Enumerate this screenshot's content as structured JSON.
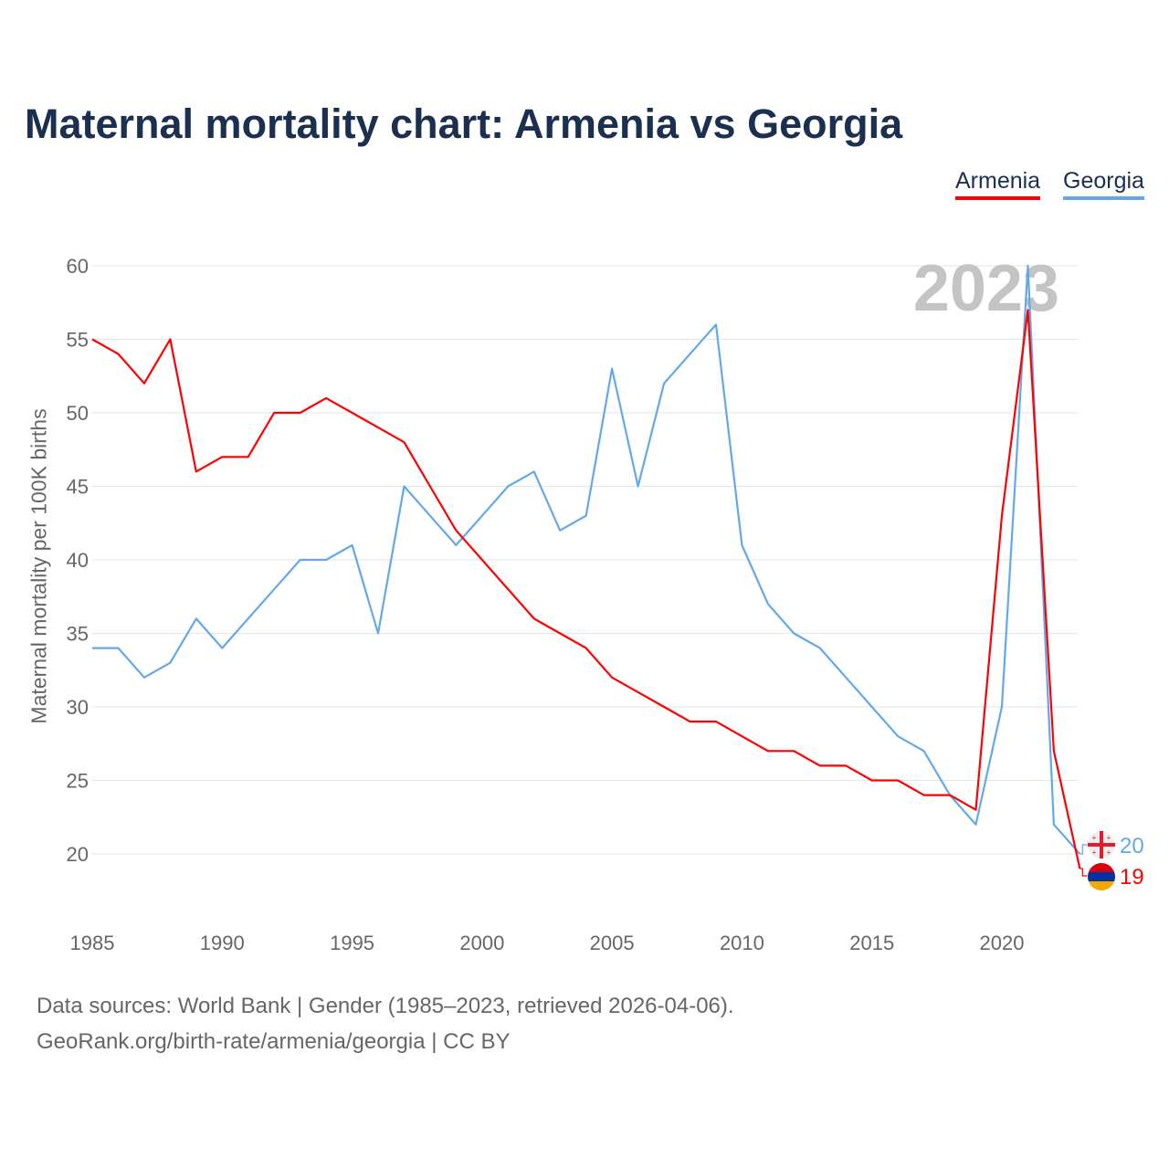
{
  "chart_data": {
    "type": "line",
    "title": "Maternal mortality chart: Armenia vs Georgia",
    "ylabel": "Maternal mortality per 100K births",
    "xlabel": "",
    "year_watermark": "2023",
    "ylim": [
      16,
      62
    ],
    "xlim": [
      1985,
      2023
    ],
    "grid": true,
    "legend_position": "top-right",
    "yticks": [
      20,
      25,
      30,
      35,
      40,
      45,
      50,
      55,
      60
    ],
    "xticks": [
      1985,
      1990,
      1995,
      2000,
      2005,
      2010,
      2015,
      2020
    ],
    "x": [
      1985,
      1986,
      1987,
      1988,
      1989,
      1990,
      1991,
      1992,
      1993,
      1994,
      1995,
      1996,
      1997,
      1998,
      1999,
      2000,
      2001,
      2002,
      2003,
      2004,
      2005,
      2006,
      2007,
      2008,
      2009,
      2010,
      2011,
      2012,
      2013,
      2014,
      2015,
      2016,
      2017,
      2018,
      2019,
      2020,
      2021,
      2022,
      2023
    ],
    "series": [
      {
        "name": "Armenia",
        "color": "#ff0000",
        "end_label": "19",
        "values": [
          55,
          54,
          52,
          55,
          46,
          47,
          47,
          50,
          50,
          51,
          50,
          49,
          48,
          45,
          42,
          40,
          38,
          36,
          35,
          34,
          32,
          31,
          30,
          29,
          29,
          28,
          27,
          27,
          26,
          26,
          25,
          25,
          24,
          24,
          23,
          43,
          57,
          27,
          19
        ]
      },
      {
        "name": "Georgia",
        "color": "#62a8ea",
        "end_label": "20",
        "values": [
          34,
          34,
          32,
          33,
          36,
          34,
          36,
          38,
          40,
          40,
          41,
          35,
          45,
          43,
          41,
          43,
          45,
          46,
          42,
          43,
          53,
          45,
          52,
          54,
          56,
          41,
          37,
          35,
          34,
          32,
          30,
          28,
          27,
          24,
          22,
          30,
          60,
          22,
          20
        ]
      }
    ]
  },
  "footer": {
    "line1": "Data sources: World Bank | Gender (1985–2023, retrieved 2026-04-06).",
    "line2": "GeoRank.org/birth-rate/armenia/georgia | CC BY"
  }
}
